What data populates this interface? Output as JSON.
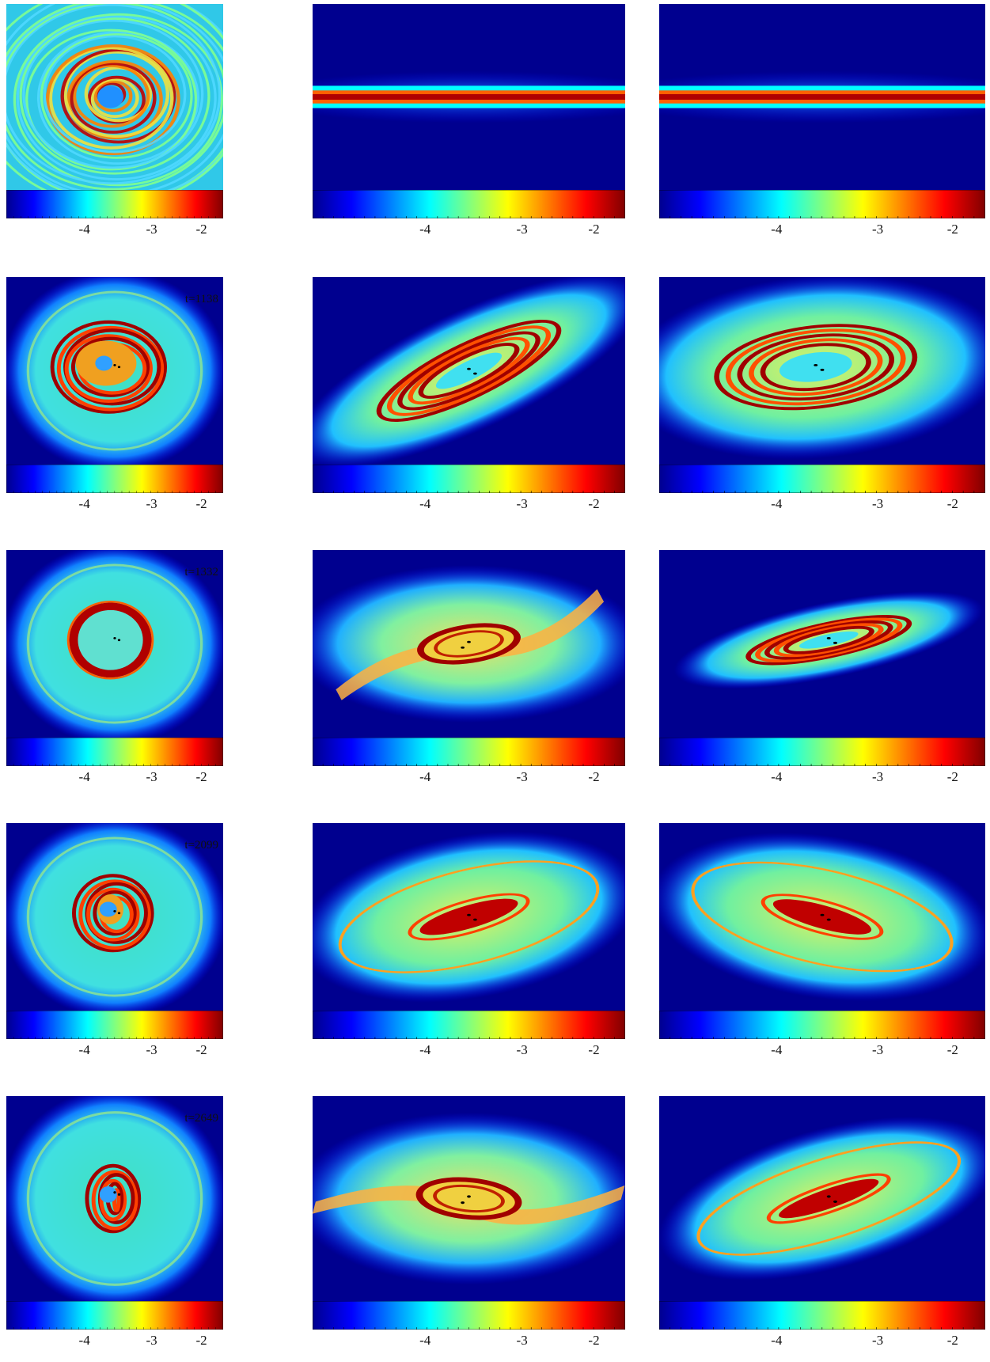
{
  "figure": {
    "colormap": [
      "#00008f",
      "#0000ff",
      "#0080ff",
      "#00ffff",
      "#80ff80",
      "#ffff00",
      "#ff8000",
      "#ff0000",
      "#800000"
    ],
    "colorbar_ticks": [
      "-4",
      "-3",
      "-2"
    ],
    "rows": [
      {
        "time_label": "",
        "panels": [
          "face-on spiral disc",
          "edge-on thin disc",
          "edge-on thin disc"
        ]
      },
      {
        "time_label": "t=1138",
        "panels": [
          "face-on rings",
          "inclined disc tilted",
          "inclined disc broad"
        ]
      },
      {
        "time_label": "t=1332",
        "panels": [
          "face-on ring",
          "warped disc",
          "inclined ring"
        ]
      },
      {
        "time_label": "t=2099",
        "panels": [
          "face-on rings",
          "inclined disc with inner bar",
          "inclined disc with rings"
        ]
      },
      {
        "time_label": "t=2649",
        "panels": [
          "face-on compact rings",
          "warped disc with inner ring",
          "inclined disc with inner bar"
        ]
      }
    ]
  }
}
